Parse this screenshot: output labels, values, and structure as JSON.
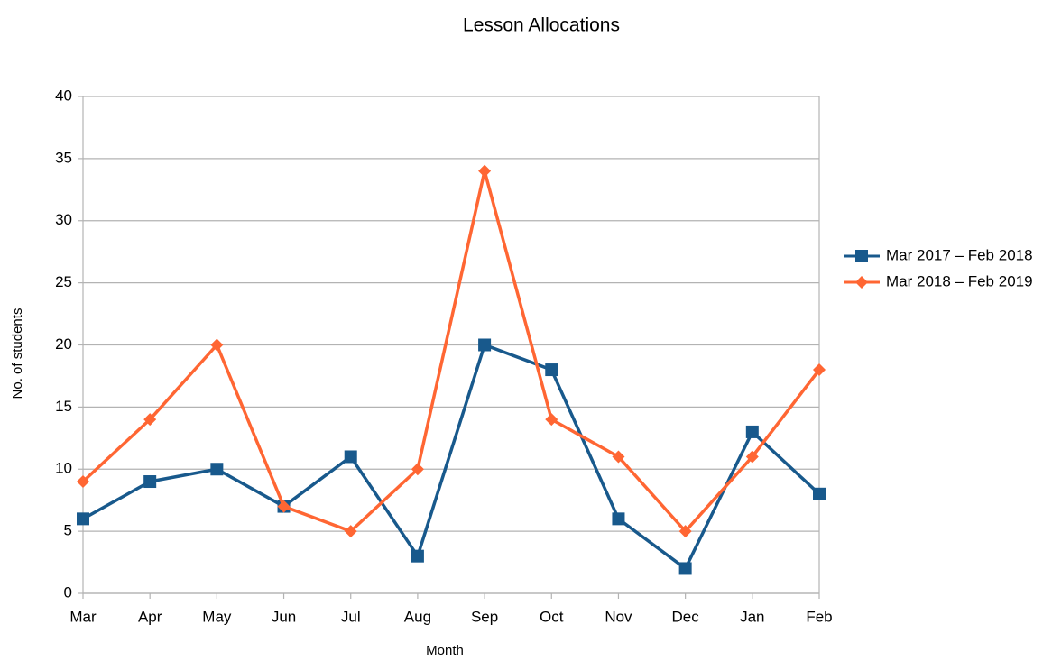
{
  "chart_data": {
    "type": "line",
    "title": "Lesson Allocations",
    "x_label": "Month",
    "y_label": "No. of students",
    "categories": [
      "Mar",
      "Apr",
      "May",
      "Jun",
      "Jul",
      "Aug",
      "Sep",
      "Oct",
      "Nov",
      "Dec",
      "Jan",
      "Feb"
    ],
    "series": [
      {
        "name": "Mar 2017 – Feb 2018",
        "color": "#18598c",
        "marker": "square",
        "values": [
          6,
          9,
          10,
          7,
          11,
          3,
          20,
          18,
          6,
          2,
          13,
          8
        ]
      },
      {
        "name": "Mar 2018 – Feb 2019",
        "color": "#ff6633",
        "marker": "diamond",
        "values": [
          9,
          14,
          20,
          7,
          5,
          10,
          34,
          14,
          11,
          5,
          11,
          18
        ]
      }
    ],
    "ylim": [
      0,
      40
    ],
    "yticks": [
      0,
      5,
      10,
      15,
      20,
      25,
      30,
      35,
      40
    ],
    "grid": true,
    "legend": "right"
  }
}
